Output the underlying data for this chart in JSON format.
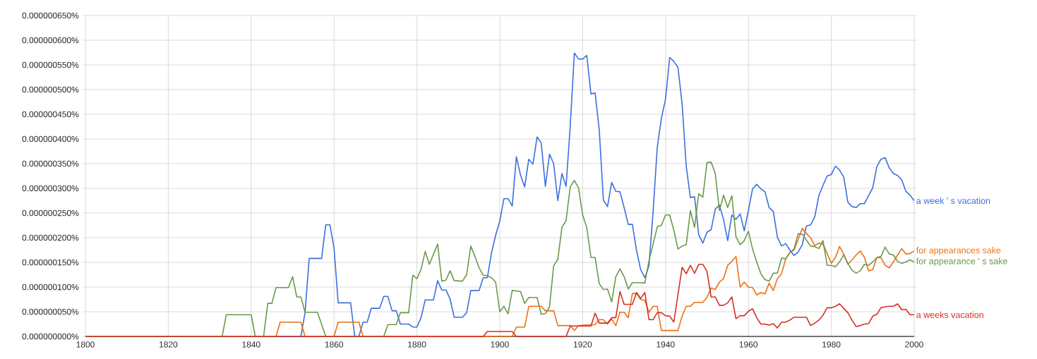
{
  "chart_data": {
    "type": "line",
    "xlim": [
      1800,
      2000
    ],
    "ylim": [
      0,
      6.5e-07
    ],
    "xticks": [
      1800,
      1820,
      1840,
      1860,
      1880,
      1900,
      1920,
      1940,
      1960,
      1980,
      2000
    ],
    "yticks": [
      {
        "value": 0,
        "label": "0.000000000%"
      },
      {
        "value": 5e-08,
        "label": "0.000000050%"
      },
      {
        "value": 1e-07,
        "label": "0.000000100%"
      },
      {
        "value": 1.5e-07,
        "label": "0.000000150%"
      },
      {
        "value": 2e-07,
        "label": "0.000000200%"
      },
      {
        "value": 2.5e-07,
        "label": "0.000000250%"
      },
      {
        "value": 3e-07,
        "label": "0.000000300%"
      },
      {
        "value": 3.5e-07,
        "label": "0.000000350%"
      },
      {
        "value": 4e-07,
        "label": "0.000000400%"
      },
      {
        "value": 4.5e-07,
        "label": "0.000000450%"
      },
      {
        "value": 5e-07,
        "label": "0.000000500%"
      },
      {
        "value": 5.5e-07,
        "label": "0.000000550%"
      },
      {
        "value": 6e-07,
        "label": "0.000000600%"
      },
      {
        "value": 6.5e-07,
        "label": "0.000000650%"
      }
    ],
    "grid": true,
    "series": [
      {
        "name": "a week ' s vacation",
        "color": "#3d6fe0",
        "x": [
          1800,
          1852,
          1853,
          1854,
          1857,
          1858,
          1859,
          1860,
          1861,
          1864,
          1865,
          1866,
          1867,
          1868,
          1869,
          1871,
          1872,
          1873,
          1874,
          1875,
          1876,
          1878,
          1879,
          1880,
          1881,
          1882,
          1884,
          1885,
          1886,
          1887,
          1888,
          1889,
          1891,
          1892,
          1893,
          1895,
          1896,
          1897,
          1898,
          1899,
          1900,
          1901,
          1902,
          1903,
          1904,
          1905,
          1906,
          1907,
          1908,
          1909,
          1910,
          1911,
          1912,
          1913,
          1914,
          1915,
          1916,
          1917,
          1918,
          1919,
          1920,
          1921,
          1922,
          1923,
          1924,
          1925,
          1926,
          1927,
          1928,
          1929,
          1930,
          1931,
          1932,
          1933,
          1934,
          1935,
          1936,
          1937,
          1938,
          1939,
          1940,
          1941,
          1942,
          1943,
          1944,
          1945,
          1946,
          1947,
          1948,
          1949,
          1950,
          1951,
          1952,
          1953,
          1954,
          1955,
          1956,
          1957,
          1958,
          1959,
          1960,
          1961,
          1962,
          1963,
          1964,
          1965,
          1966,
          1967,
          1968,
          1969,
          1970,
          1971,
          1972,
          1973,
          1974,
          1975,
          1976,
          1977,
          1978,
          1979,
          1980,
          1981,
          1982,
          1983,
          1984,
          1985,
          1986,
          1987,
          1988,
          1989,
          1990,
          1991,
          1992,
          1993,
          1994,
          1995,
          1996,
          1997,
          1998,
          1999,
          2000
        ],
        "values": [
          0,
          0,
          4.8e-08,
          1.58e-07,
          1.58e-07,
          2.26e-07,
          2.26e-07,
          1.79e-07,
          6.8e-08,
          6.8e-08,
          0,
          0,
          2.9e-08,
          2.9e-08,
          5.7e-08,
          5.7e-08,
          8.1e-08,
          8.1e-08,
          5.2e-08,
          5.2e-08,
          2.5e-08,
          2.5e-08,
          1.9e-08,
          1.9e-08,
          3.8e-08,
          7.4e-08,
          7.4e-08,
          1.13e-07,
          9.4e-08,
          9.4e-08,
          7.6e-08,
          3.9e-08,
          3.9e-08,
          4.8e-08,
          9.3e-08,
          9.3e-08,
          1.19e-07,
          1.19e-07,
          1.69e-07,
          2.05e-07,
          2.34e-07,
          2.79e-07,
          2.79e-07,
          2.64e-07,
          3.64e-07,
          3.27e-07,
          3.03e-07,
          3.59e-07,
          3.49e-07,
          4.04e-07,
          3.92e-07,
          3.04e-07,
          3.69e-07,
          3.5e-07,
          2.75e-07,
          3.3e-07,
          3.04e-07,
          4.26e-07,
          5.74e-07,
          5.62e-07,
          5.62e-07,
          5.69e-07,
          4.91e-07,
          4.93e-07,
          4.19e-07,
          2.76e-07,
          2.63e-07,
          3.12e-07,
          2.94e-07,
          2.93e-07,
          2.61e-07,
          2.27e-07,
          2.27e-07,
          1.74e-07,
          1.35e-07,
          1.19e-07,
          1.43e-07,
          2.53e-07,
          3.83e-07,
          4.42e-07,
          4.81e-07,
          5.65e-07,
          5.57e-07,
          5.45e-07,
          4.71e-07,
          3.44e-07,
          2.81e-07,
          2.83e-07,
          2.06e-07,
          1.89e-07,
          2.11e-07,
          2.16e-07,
          2.58e-07,
          2.66e-07,
          2.37e-07,
          1.94e-07,
          2.46e-07,
          2.37e-07,
          2.48e-07,
          2.14e-07,
          2.55e-07,
          2.99e-07,
          3.08e-07,
          2.99e-07,
          2.93e-07,
          2.61e-07,
          2.53e-07,
          2.01e-07,
          1.83e-07,
          1.88e-07,
          1.75e-07,
          1.64e-07,
          1.71e-07,
          1.86e-07,
          2.24e-07,
          2.26e-07,
          2.42e-07,
          2.85e-07,
          3.06e-07,
          3.25e-07,
          3.28e-07,
          3.45e-07,
          3.37e-07,
          3.23e-07,
          2.72e-07,
          2.63e-07,
          2.61e-07,
          2.69e-07,
          2.69e-07,
          2.85e-07,
          3.01e-07,
          3.44e-07,
          3.59e-07,
          3.62e-07,
          3.41e-07,
          3.3e-07,
          3.26e-07,
          3.17e-07,
          2.94e-07,
          2.86e-07,
          2.75e-07
        ]
      },
      {
        "name": "for appearances sake",
        "color": "#ec7014",
        "x": [
          1800,
          1846,
          1847,
          1852,
          1853,
          1860,
          1861,
          1866,
          1867,
          1903,
          1904,
          1906,
          1907,
          1910,
          1911,
          1913,
          1914,
          1917,
          1918,
          1919,
          1921,
          1923,
          1924,
          1925,
          1926,
          1927,
          1928,
          1929,
          1930,
          1931,
          1932,
          1933,
          1934,
          1935,
          1936,
          1937,
          1938,
          1939,
          1943,
          1944,
          1945,
          1946,
          1947,
          1949,
          1950,
          1951,
          1952,
          1953,
          1954,
          1955,
          1956,
          1957,
          1958,
          1959,
          1960,
          1961,
          1962,
          1963,
          1964,
          1965,
          1966,
          1967,
          1968,
          1969,
          1970,
          1971,
          1972,
          1973,
          1974,
          1975,
          1976,
          1977,
          1978,
          1979,
          1980,
          1981,
          1982,
          1983,
          1984,
          1985,
          1986,
          1987,
          1988,
          1989,
          1990,
          1991,
          1992,
          1993,
          1994,
          1995,
          1996,
          1997,
          1998,
          1999,
          2000
        ],
        "values": [
          0,
          0,
          2.9e-08,
          2.9e-08,
          0,
          0,
          2.9e-08,
          2.9e-08,
          0,
          0,
          1.9e-08,
          1.9e-08,
          6.1e-08,
          6.1e-08,
          5.2e-08,
          5.2e-08,
          2.2e-08,
          2.2e-08,
          1.2e-08,
          2.2e-08,
          2.3e-08,
          2.4e-08,
          3.4e-08,
          3.4e-08,
          2.5e-08,
          3.5e-08,
          2.2e-08,
          4.9e-08,
          4.9e-08,
          3.8e-08,
          8.7e-08,
          8.7e-08,
          7.5e-08,
          7.3e-08,
          4.9e-08,
          6.1e-08,
          6.1e-08,
          1.2e-08,
          1.2e-08,
          4.1e-08,
          6.1e-08,
          6.1e-08,
          6.9e-08,
          6.9e-08,
          7.9e-08,
          9.8e-08,
          9.5e-08,
          1.1e-07,
          1.17e-07,
          1.44e-07,
          1.52e-07,
          1.62e-07,
          1e-07,
          1.1e-07,
          1e-07,
          9.9e-08,
          8.4e-08,
          8.9e-08,
          8.6e-08,
          1.08e-07,
          9.3e-08,
          1.17e-07,
          1.27e-07,
          1.57e-07,
          1.7e-07,
          1.75e-07,
          1.96e-07,
          2.19e-07,
          2.08e-07,
          2e-07,
          1.84e-07,
          1.89e-07,
          1.87e-07,
          1.68e-07,
          1.48e-07,
          1.6e-07,
          1.82e-07,
          1.67e-07,
          1.46e-07,
          1.55e-07,
          1.65e-07,
          1.73e-07,
          1.6e-07,
          1.33e-07,
          1.35e-07,
          1.6e-07,
          1.59e-07,
          1.44e-07,
          1.39e-07,
          1.51e-07,
          1.65e-07,
          1.78e-07,
          1.67e-07,
          1.68e-07,
          1.73e-07
        ]
      },
      {
        "name": "for appearance ' s sake",
        "color": "#6a9a4b",
        "x": [
          1800,
          1833,
          1834,
          1840,
          1841,
          1843,
          1844,
          1845,
          1846,
          1849,
          1850,
          1851,
          1852,
          1853,
          1856,
          1858,
          1872,
          1873,
          1875,
          1876,
          1878,
          1879,
          1880,
          1881,
          1882,
          1883,
          1885,
          1886,
          1887,
          1888,
          1889,
          1891,
          1892,
          1893,
          1894,
          1895,
          1896,
          1897,
          1898,
          1899,
          1900,
          1901,
          1902,
          1903,
          1905,
          1906,
          1907,
          1909,
          1910,
          1911,
          1912,
          1913,
          1914,
          1915,
          1916,
          1917,
          1918,
          1919,
          1920,
          1921,
          1922,
          1923,
          1924,
          1925,
          1926,
          1927,
          1928,
          1929,
          1930,
          1931,
          1932,
          1934,
          1935,
          1936,
          1937,
          1938,
          1939,
          1940,
          1941,
          1942,
          1943,
          1944,
          1945,
          1946,
          1947,
          1948,
          1949,
          1950,
          1951,
          1952,
          1953,
          1954,
          1955,
          1956,
          1957,
          1958,
          1959,
          1960,
          1961,
          1962,
          1963,
          1964,
          1965,
          1966,
          1967,
          1968,
          1969,
          1970,
          1971,
          1972,
          1973,
          1974,
          1975,
          1976,
          1977,
          1978,
          1979,
          1980,
          1981,
          1982,
          1983,
          1984,
          1985,
          1986,
          1987,
          1988,
          1989,
          1990,
          1991,
          1992,
          1993,
          1994,
          1995,
          1996,
          1997,
          1998,
          1999,
          2000
        ],
        "values": [
          0,
          0,
          4.4e-08,
          4.4e-08,
          0,
          0,
          6.7e-08,
          6.7e-08,
          9.9e-08,
          9.9e-08,
          1.21e-07,
          8e-08,
          8e-08,
          4.9e-08,
          4.9e-08,
          0,
          0,
          2.4e-08,
          2.4e-08,
          4.8e-08,
          4.8e-08,
          1.24e-07,
          1.17e-07,
          1.36e-07,
          1.72e-07,
          1.46e-07,
          1.87e-07,
          1.12e-07,
          1.14e-07,
          1.33e-07,
          1.13e-07,
          1.12e-07,
          1.25e-07,
          1.83e-07,
          1.62e-07,
          1.39e-07,
          1.24e-07,
          1.23e-07,
          1.19e-07,
          1.1e-07,
          5e-08,
          6.1e-08,
          4.6e-08,
          9.3e-08,
          9.1e-08,
          6.7e-08,
          7.9e-08,
          7.9e-08,
          4.5e-08,
          4.6e-08,
          6e-08,
          1.43e-07,
          1.56e-07,
          2.21e-07,
          2.35e-07,
          3.03e-07,
          3.16e-07,
          3.01e-07,
          2.46e-07,
          2.2e-07,
          1.6e-07,
          1.6e-07,
          1.07e-07,
          9.5e-08,
          9.6e-08,
          7e-08,
          1.21e-07,
          1.37e-07,
          1.21e-07,
          9.6e-08,
          1.09e-07,
          1.09e-07,
          1.08e-07,
          1.53e-07,
          1.87e-07,
          2.22e-07,
          2.25e-07,
          2.46e-07,
          2.46e-07,
          2.15e-07,
          1.77e-07,
          1.83e-07,
          1.86e-07,
          2.55e-07,
          2.21e-07,
          2.89e-07,
          2.82e-07,
          3.52e-07,
          3.53e-07,
          3.3e-07,
          2.55e-07,
          2.86e-07,
          2.61e-07,
          2.85e-07,
          2.02e-07,
          1.86e-07,
          1.94e-07,
          2.13e-07,
          1.77e-07,
          1.51e-07,
          1.27e-07,
          1.15e-07,
          1.12e-07,
          1.28e-07,
          1.28e-07,
          1.59e-07,
          1.57e-07,
          1.7e-07,
          1.77e-07,
          2.08e-07,
          2.07e-07,
          1.95e-07,
          1.83e-07,
          1.82e-07,
          1.78e-07,
          1.94e-07,
          1.44e-07,
          1.44e-07,
          1.41e-07,
          1.51e-07,
          1.65e-07,
          1.48e-07,
          1.34e-07,
          1.28e-07,
          1.33e-07,
          1.46e-07,
          1.44e-07,
          1.51e-07,
          1.6e-07,
          1.62e-07,
          1.81e-07,
          1.67e-07,
          1.65e-07,
          1.52e-07,
          1.48e-07,
          1.51e-07,
          1.55e-07,
          1.51e-07
        ]
      },
      {
        "name": "a weeks vacation",
        "color": "#d62f27",
        "x": [
          1800,
          1896,
          1897,
          1903,
          1904,
          1916,
          1917,
          1922,
          1923,
          1924,
          1926,
          1927,
          1928,
          1929,
          1930,
          1932,
          1933,
          1934,
          1935,
          1936,
          1937,
          1938,
          1939,
          1940,
          1941,
          1942,
          1944,
          1945,
          1946,
          1947,
          1948,
          1949,
          1950,
          1951,
          1952,
          1953,
          1954,
          1955,
          1956,
          1957,
          1958,
          1959,
          1960,
          1961,
          1962,
          1963,
          1964,
          1965,
          1966,
          1967,
          1968,
          1969,
          1970,
          1971,
          1974,
          1975,
          1976,
          1977,
          1978,
          1979,
          1980,
          1981,
          1982,
          1983,
          1984,
          1985,
          1986,
          1987,
          1988,
          1989,
          1990,
          1991,
          1992,
          1993,
          1994,
          1995,
          1996,
          1997,
          1998,
          1999,
          2000
        ],
        "values": [
          0,
          0,
          1e-08,
          1e-08,
          0,
          0,
          2.1e-08,
          2.1e-08,
          4.7e-08,
          2.7e-08,
          2.7e-08,
          3.8e-08,
          3.8e-08,
          9.1e-08,
          6.5e-08,
          6.5e-08,
          8.9e-08,
          7.7e-08,
          8.9e-08,
          3.4e-08,
          3.4e-08,
          4.8e-08,
          4.8e-08,
          4.2e-08,
          4.1e-08,
          2.9e-08,
          1.4e-07,
          1.27e-07,
          1.44e-07,
          1.28e-07,
          1.46e-07,
          1.46e-07,
          1.32e-07,
          8e-08,
          8e-08,
          6.3e-08,
          6.3e-08,
          6.8e-08,
          8e-08,
          3.6e-08,
          4.2e-08,
          4.2e-08,
          5.1e-08,
          5.6e-08,
          3.8e-08,
          2.5e-08,
          2.5e-08,
          2.3e-08,
          2.6e-08,
          1.7e-08,
          2.9e-08,
          2.9e-08,
          3.3e-08,
          3.9e-08,
          3.9e-08,
          2.2e-08,
          2.7e-08,
          3.3e-08,
          4.3e-08,
          5.8e-08,
          5.8e-08,
          6.1e-08,
          6.6e-08,
          5.7e-08,
          4.8e-08,
          3.3e-08,
          2e-08,
          2.2e-08,
          2.5e-08,
          2.6e-08,
          4.1e-08,
          4.5e-08,
          5.8e-08,
          6e-08,
          6.1e-08,
          6.1e-08,
          6.6e-08,
          5.4e-08,
          5.5e-08,
          4.4e-08,
          4.4e-08
        ]
      }
    ]
  }
}
